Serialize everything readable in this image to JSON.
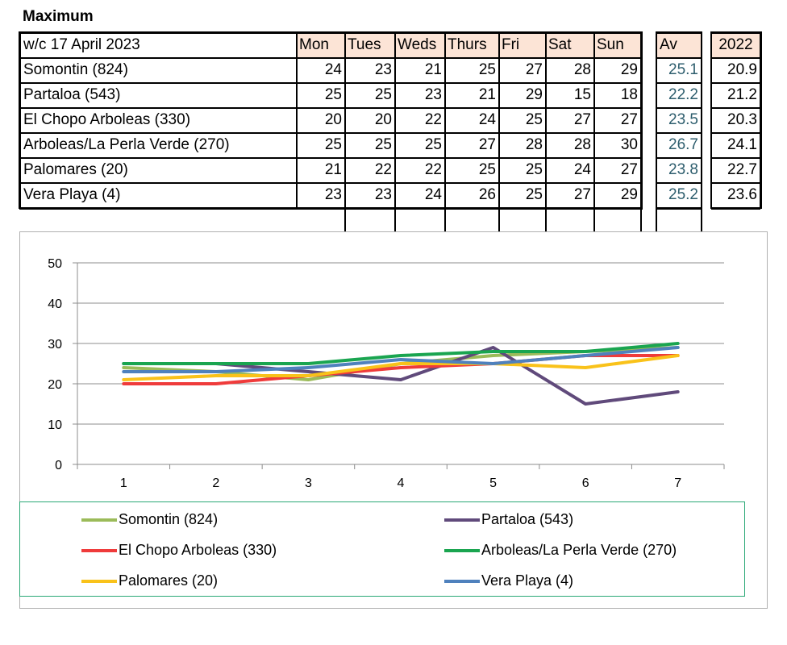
{
  "title": "Maximum",
  "table": {
    "week_label": "w/c  17 April 2023",
    "day_headers": [
      "Mon",
      "Tues",
      "Weds",
      "Thurs",
      "Fri",
      "Sat",
      "Sun"
    ],
    "av_header": "Av",
    "prev_header": "2022",
    "rows": [
      {
        "name": "Somontin (824)",
        "vals": [
          "24",
          "23",
          "21",
          "25",
          "27",
          "28",
          "29"
        ],
        "av": "25.1",
        "prev": "20.9"
      },
      {
        "name": "Partaloa (543)",
        "vals": [
          "25",
          "25",
          "23",
          "21",
          "29",
          "15",
          "18"
        ],
        "av": "22.2",
        "prev": "21.2"
      },
      {
        "name": "El Chopo  Arboleas (330)",
        "vals": [
          "20",
          "20",
          "22",
          "24",
          "25",
          "27",
          "27"
        ],
        "av": "23.5",
        "prev": "20.3"
      },
      {
        "name": "Arboleas/La Perla Verde (270)",
        "vals": [
          "25",
          "25",
          "25",
          "27",
          "28",
          "28",
          "30"
        ],
        "av": "26.7",
        "prev": "24.1"
      },
      {
        "name": "Palomares (20)",
        "vals": [
          "21",
          "22",
          "22",
          "25",
          "25",
          "24",
          "27"
        ],
        "av": "23.8",
        "prev": "22.7"
      },
      {
        "name": "Vera Playa (4)",
        "vals": [
          "23",
          "23",
          "24",
          "26",
          "25",
          "27",
          "29"
        ],
        "av": "25.2",
        "prev": "23.6"
      }
    ]
  },
  "chart_data": {
    "type": "line",
    "x": [
      1,
      2,
      3,
      4,
      5,
      6,
      7
    ],
    "x_tick_labels": [
      "1",
      "2",
      "3",
      "4",
      "5",
      "6",
      "7"
    ],
    "y_ticks": [
      0,
      10,
      20,
      30,
      40,
      50
    ],
    "y_tick_labels": [
      "0",
      "10",
      "20",
      "30",
      "40",
      "50"
    ],
    "ylim": [
      0,
      50
    ],
    "grid": true,
    "legend_position": "bottom",
    "series": [
      {
        "name": "Somontin (824)",
        "color": "#9bbb59",
        "values": [
          24,
          23,
          21,
          25,
          27,
          28,
          29
        ]
      },
      {
        "name": "Partaloa (543)",
        "color": "#604a7b",
        "values": [
          25,
          25,
          23,
          21,
          29,
          15,
          18
        ]
      },
      {
        "name": "El Chopo  Arboleas (330)",
        "color": "#ef3b3b",
        "values": [
          20,
          20,
          22,
          24,
          25,
          27,
          27
        ]
      },
      {
        "name": "Arboleas/La Perla Verde (270)",
        "color": "#1aa550",
        "values": [
          25,
          25,
          25,
          27,
          28,
          28,
          30
        ]
      },
      {
        "name": "Palomares (20)",
        "color": "#f9c21a",
        "values": [
          21,
          22,
          22,
          25,
          25,
          24,
          27
        ]
      },
      {
        "name": "Vera Playa (4)",
        "color": "#4f81bd",
        "values": [
          23,
          23,
          24,
          26,
          25,
          27,
          29
        ]
      }
    ]
  }
}
